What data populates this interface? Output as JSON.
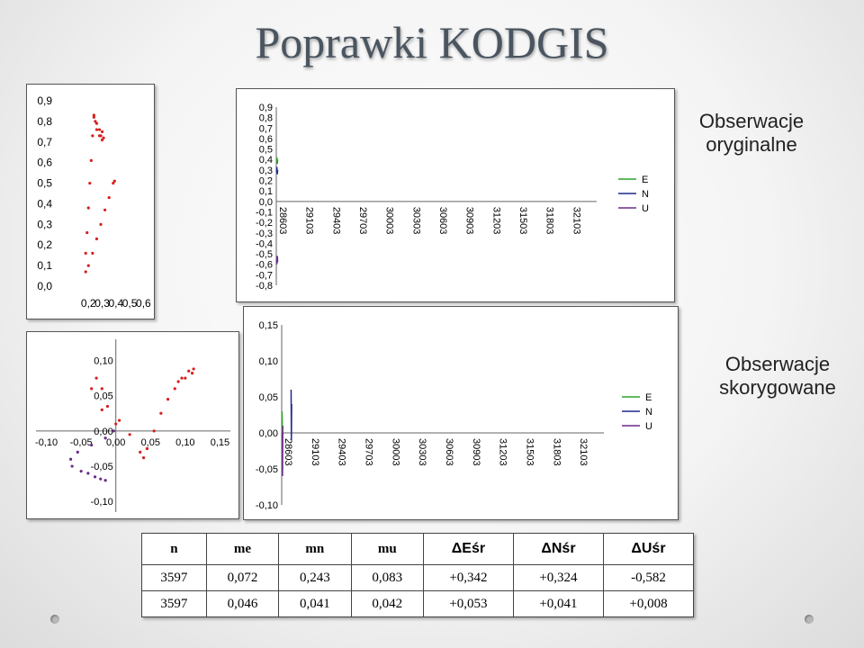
{
  "slide": {
    "title": "Poprawki KODGIS",
    "label_original": [
      "Obserwacje",
      "oryginalne"
    ],
    "label_corrected": [
      "Obserwacje",
      "skorygowane"
    ]
  },
  "colors": {
    "E": "#2ca02c",
    "N": "#1f2a8c",
    "U": "#6a2a8a",
    "scatter": "#d81e1e"
  },
  "chart_data": [
    {
      "type": "scatter",
      "name": "scatter-original",
      "x_ticks": [
        "0,2",
        "0,3",
        "0,4",
        "0,5",
        "0,6"
      ],
      "y_ticks": [
        "0,9",
        "0,8",
        "0,7",
        "0,6",
        "0,5",
        "0,4",
        "0,3",
        "0,2",
        "0,1",
        "0,0"
      ],
      "xlim": [
        0.1,
        0.65
      ],
      "ylim": [
        0.0,
        0.9
      ],
      "points": [
        [
          0.24,
          0.82
        ],
        [
          0.26,
          0.79
        ],
        [
          0.28,
          0.76
        ],
        [
          0.3,
          0.75
        ],
        [
          0.29,
          0.73
        ],
        [
          0.31,
          0.72
        ],
        [
          0.3,
          0.71
        ],
        [
          0.28,
          0.73
        ],
        [
          0.26,
          0.76
        ],
        [
          0.25,
          0.8
        ],
        [
          0.24,
          0.83
        ],
        [
          0.23,
          0.73
        ],
        [
          0.22,
          0.61
        ],
        [
          0.21,
          0.5
        ],
        [
          0.2,
          0.38
        ],
        [
          0.19,
          0.26
        ],
        [
          0.18,
          0.16
        ],
        [
          0.18,
          0.07
        ],
        [
          0.2,
          0.1
        ],
        [
          0.23,
          0.16
        ],
        [
          0.26,
          0.23
        ],
        [
          0.29,
          0.3
        ],
        [
          0.32,
          0.37
        ],
        [
          0.35,
          0.43
        ],
        [
          0.38,
          0.5
        ],
        [
          0.39,
          0.51
        ]
      ]
    },
    {
      "type": "line",
      "name": "timeseries-original",
      "categories": [
        "28603",
        "29103",
        "29403",
        "29703",
        "30003",
        "30303",
        "30603",
        "30903",
        "31203",
        "31503",
        "31803",
        "32103"
      ],
      "y_ticks": [
        "0,9",
        "0,8",
        "0,7",
        "0,6",
        "0,5",
        "0,4",
        "0,3",
        "0,2",
        "0,1",
        "0,0",
        "-0,1",
        "-0,2",
        "-0,3",
        "-0,4",
        "-0,5",
        "-0,6",
        "-0,7",
        "-0,8"
      ],
      "ylim": [
        -0.8,
        0.9
      ],
      "legend": [
        "E",
        "N",
        "U"
      ],
      "series": [
        {
          "name": "E",
          "x": [
            0.01,
            0.02,
            0.04,
            0.05
          ],
          "values": [
            0.38,
            0.42,
            0.36,
            0.4
          ]
        },
        {
          "name": "N",
          "x": [
            0.01,
            0.02,
            0.04,
            0.05
          ],
          "values": [
            0.28,
            0.33,
            0.26,
            0.3
          ]
        },
        {
          "name": "U",
          "x": [
            0.01,
            0.02,
            0.04,
            0.05
          ],
          "values": [
            -0.55,
            -0.6,
            -0.52,
            -0.58
          ]
        }
      ]
    },
    {
      "type": "scatter",
      "name": "scatter-corrected",
      "x_ticks": [
        "-0,10",
        "-0,05",
        "0,00",
        "0,05",
        "0,10",
        "0,15"
      ],
      "y_ticks": [
        "0,10",
        "0,05",
        "0,00",
        "-0,05",
        "-0,10"
      ],
      "xlim": [
        -0.115,
        0.165
      ],
      "ylim": [
        -0.115,
        0.13
      ],
      "red_points": [
        [
          0.0,
          0.01
        ],
        [
          -0.02,
          0.03
        ],
        [
          -0.035,
          0.06
        ],
        [
          -0.028,
          0.075
        ],
        [
          -0.02,
          0.06
        ],
        [
          -0.012,
          0.035
        ],
        [
          0.005,
          0.015
        ],
        [
          0.02,
          -0.005
        ],
        [
          0.035,
          -0.03
        ],
        [
          0.04,
          -0.038
        ],
        [
          0.045,
          -0.025
        ],
        [
          0.055,
          0.0
        ],
        [
          0.065,
          0.025
        ],
        [
          0.075,
          0.045
        ],
        [
          0.085,
          0.06
        ],
        [
          0.095,
          0.075
        ],
        [
          0.105,
          0.085
        ],
        [
          0.112,
          0.088
        ],
        [
          0.11,
          0.082
        ],
        [
          0.1,
          0.075
        ],
        [
          0.09,
          0.07
        ]
      ],
      "purple_points": [
        [
          -0.003,
          0.0
        ],
        [
          -0.015,
          -0.01
        ],
        [
          -0.035,
          -0.02
        ],
        [
          -0.055,
          -0.03
        ],
        [
          -0.065,
          -0.04
        ],
        [
          -0.063,
          -0.05
        ],
        [
          -0.05,
          -0.057
        ],
        [
          -0.04,
          -0.06
        ],
        [
          -0.03,
          -0.065
        ],
        [
          -0.022,
          -0.068
        ],
        [
          -0.015,
          -0.07
        ]
      ]
    },
    {
      "type": "line",
      "name": "timeseries-corrected",
      "categories": [
        "28603",
        "29103",
        "29403",
        "29703",
        "30003",
        "30303",
        "30603",
        "30903",
        "31203",
        "31503",
        "31803",
        "32103"
      ],
      "y_ticks": [
        "0,15",
        "0,10",
        "0,05",
        "0,00",
        "-0,05",
        "-0,10"
      ],
      "ylim": [
        -0.1,
        0.15
      ],
      "legend": [
        "E",
        "N",
        "U"
      ],
      "series": [
        {
          "name": "E",
          "x": [
            0.01,
            0.02,
            0.03
          ],
          "values": [
            0.03,
            0.015,
            -0.05
          ]
        },
        {
          "name": "N",
          "x": [
            0.35,
            0.36,
            0.37
          ],
          "values": [
            0.06,
            -0.01,
            0.04
          ]
        },
        {
          "name": "U",
          "x": [
            0.02,
            0.03,
            0.04
          ],
          "values": [
            0.0,
            -0.06,
            0.01
          ]
        }
      ]
    }
  ],
  "table": {
    "headers": [
      "n",
      "me",
      "mn",
      "mu",
      "ΔEśr",
      "ΔNśr",
      "ΔUśr"
    ],
    "rows": [
      [
        "3597",
        "0,072",
        "0,243",
        "0,083",
        "+0,342",
        "+0,324",
        "-0,582"
      ],
      [
        "3597",
        "0,046",
        "0,041",
        "0,042",
        "+0,053",
        "+0,041",
        "+0,008"
      ]
    ]
  }
}
